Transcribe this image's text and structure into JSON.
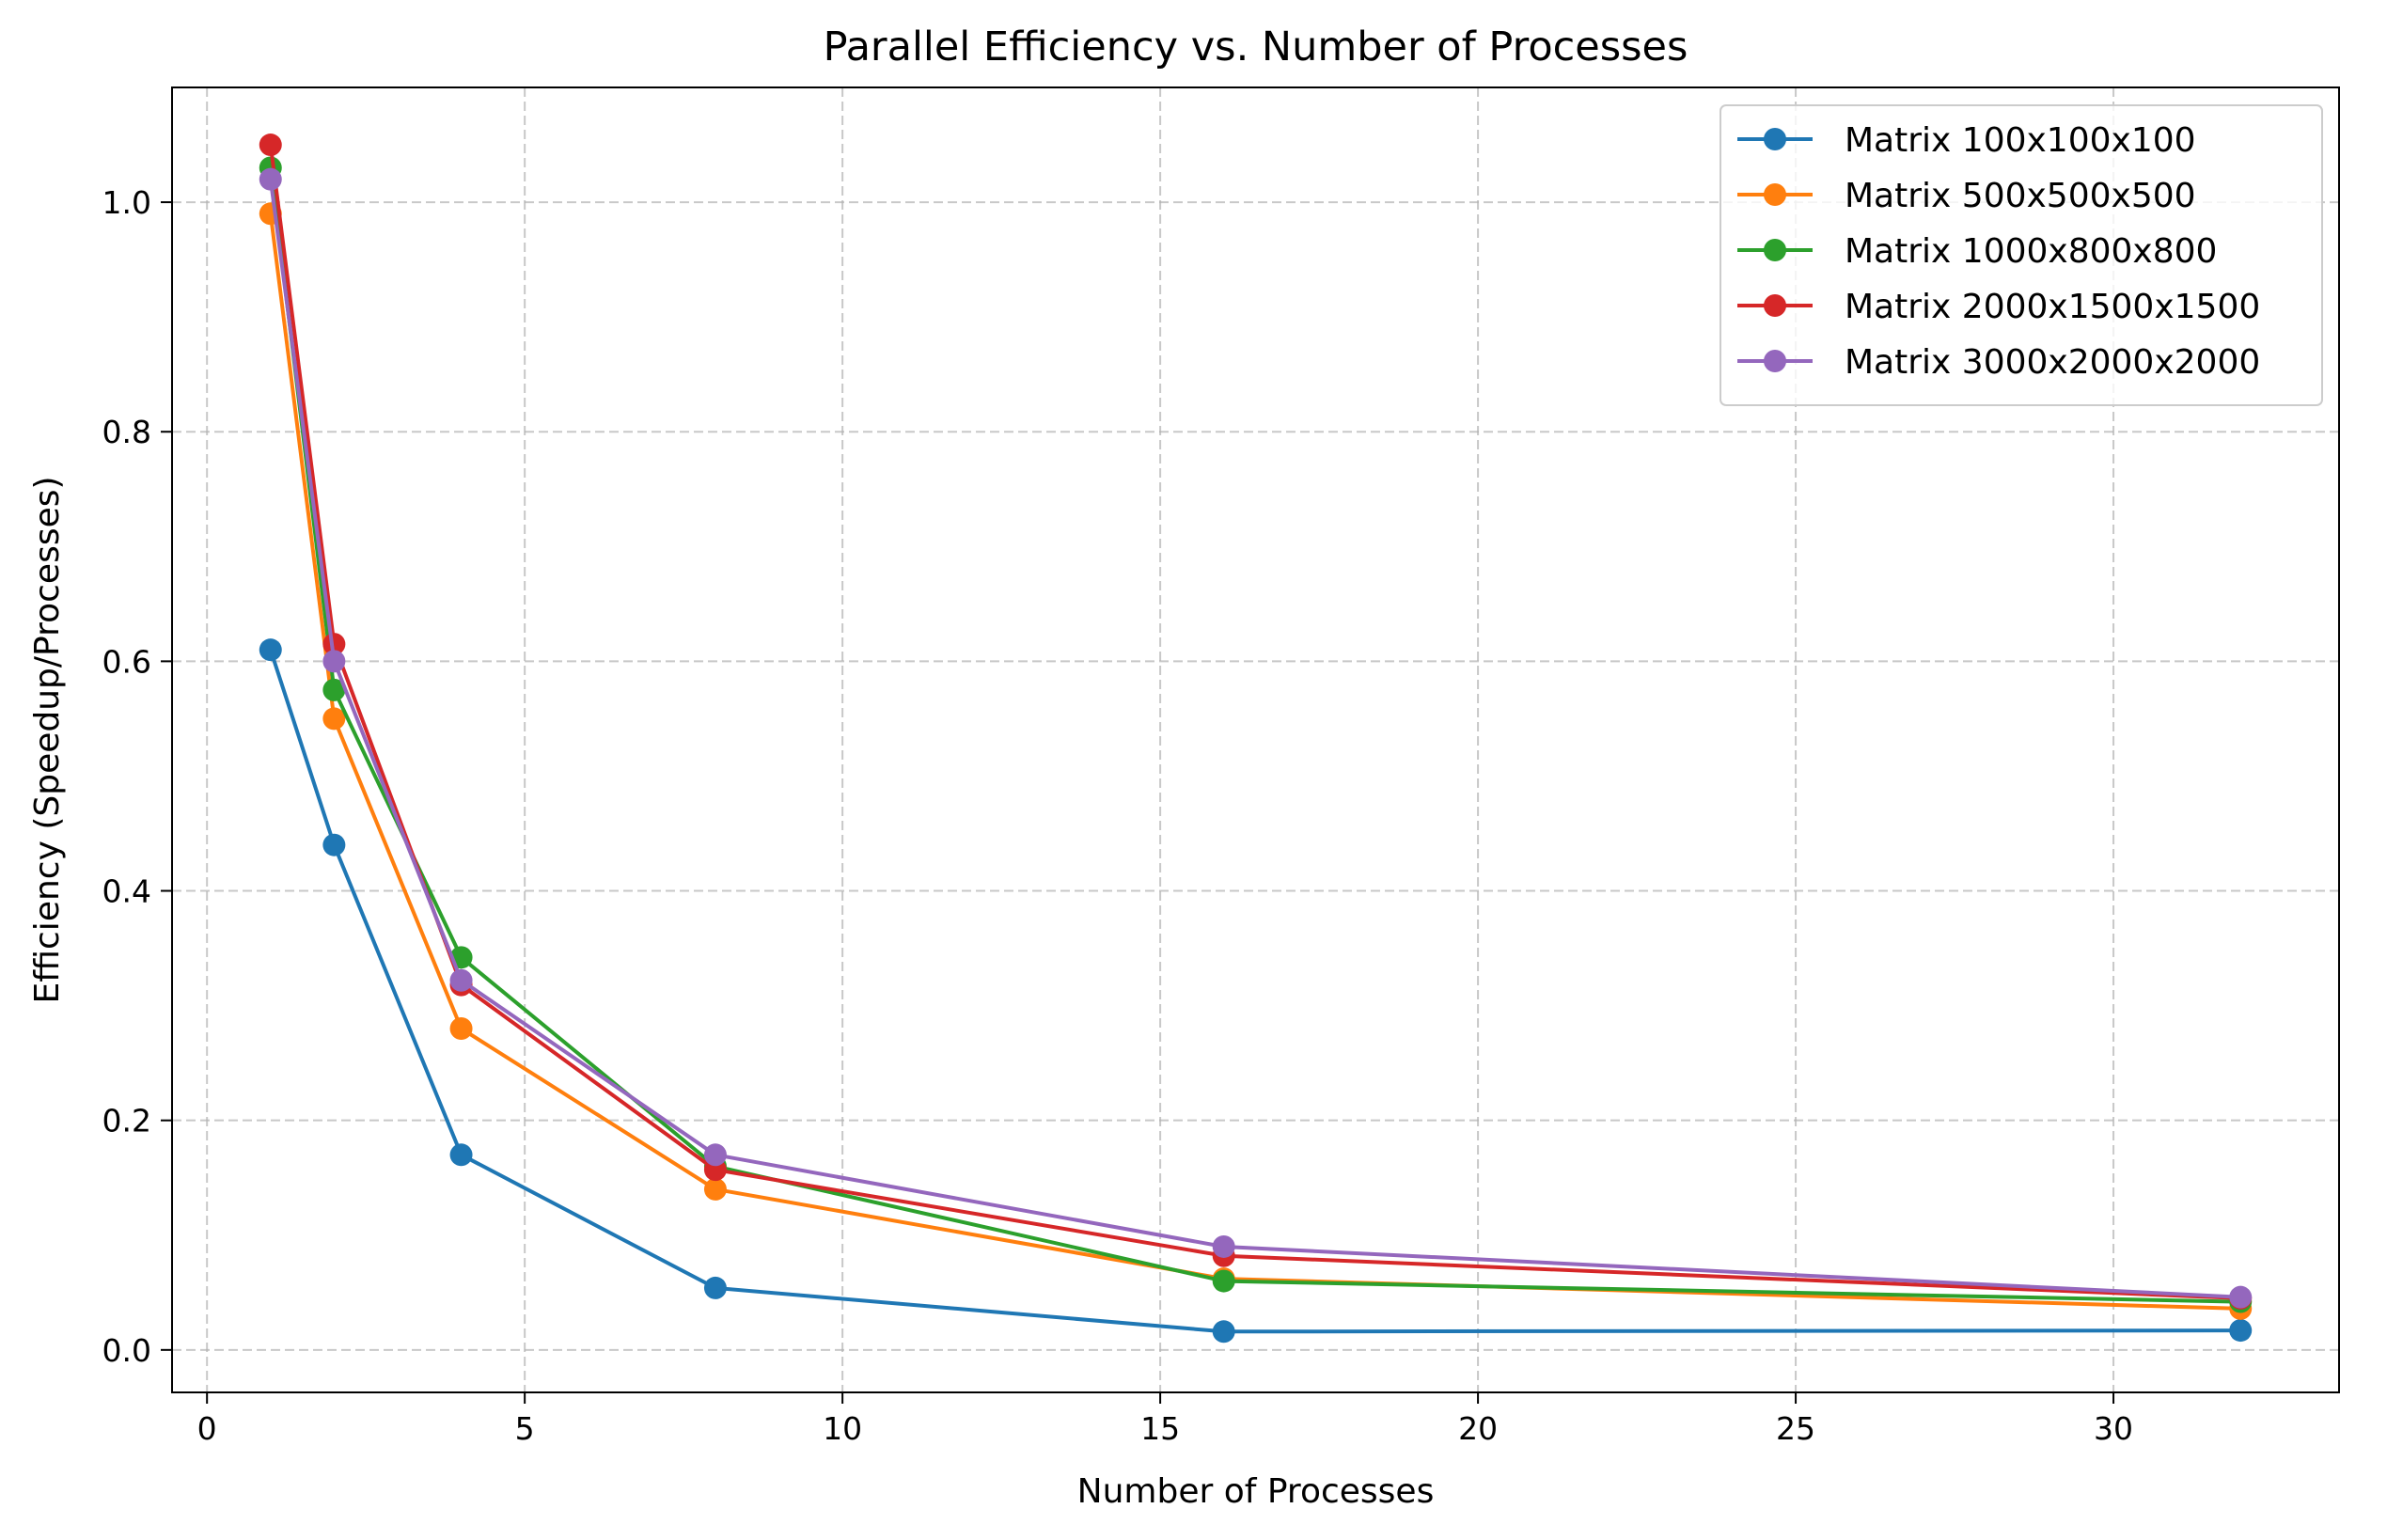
{
  "chart_data": {
    "type": "line",
    "title": "Parallel Efficiency vs. Number of Processes",
    "xlabel": "Number of Processes",
    "ylabel": "Efficiency (Speedup/Processes)",
    "xlim": [
      -0.55,
      33.55
    ],
    "ylim": [
      -0.037,
      1.1
    ],
    "x_ticks": [
      0,
      5,
      10,
      15,
      20,
      25,
      30
    ],
    "x_tick_labels": [
      "0",
      "5",
      "10",
      "15",
      "20",
      "25",
      "30"
    ],
    "y_ticks": [
      0.0,
      0.2,
      0.4,
      0.6,
      0.8,
      1.0
    ],
    "y_tick_labels": [
      "0.0",
      "0.2",
      "0.4",
      "0.6",
      "0.8",
      "1.0"
    ],
    "grid": true,
    "legend_position": "top-right",
    "x": [
      1,
      2,
      4,
      8,
      16,
      32
    ],
    "series": [
      {
        "name": "Matrix 100x100x100",
        "color": "#1f77b4",
        "values": [
          0.61,
          0.44,
          0.17,
          0.054,
          0.016,
          0.017
        ]
      },
      {
        "name": "Matrix 500x500x500",
        "color": "#ff7f0e",
        "values": [
          0.99,
          0.55,
          0.28,
          0.14,
          0.062,
          0.036
        ]
      },
      {
        "name": "Matrix 1000x800x800",
        "color": "#2ca02c",
        "values": [
          1.03,
          0.575,
          0.342,
          0.16,
          0.06,
          0.042
        ]
      },
      {
        "name": "Matrix 2000x1500x1500",
        "color": "#d62728",
        "values": [
          1.05,
          0.615,
          0.318,
          0.157,
          0.082,
          0.045
        ]
      },
      {
        "name": "Matrix 3000x2000x2000",
        "color": "#9467bd",
        "values": [
          1.02,
          0.6,
          0.322,
          0.17,
          0.09,
          0.046
        ]
      }
    ]
  }
}
